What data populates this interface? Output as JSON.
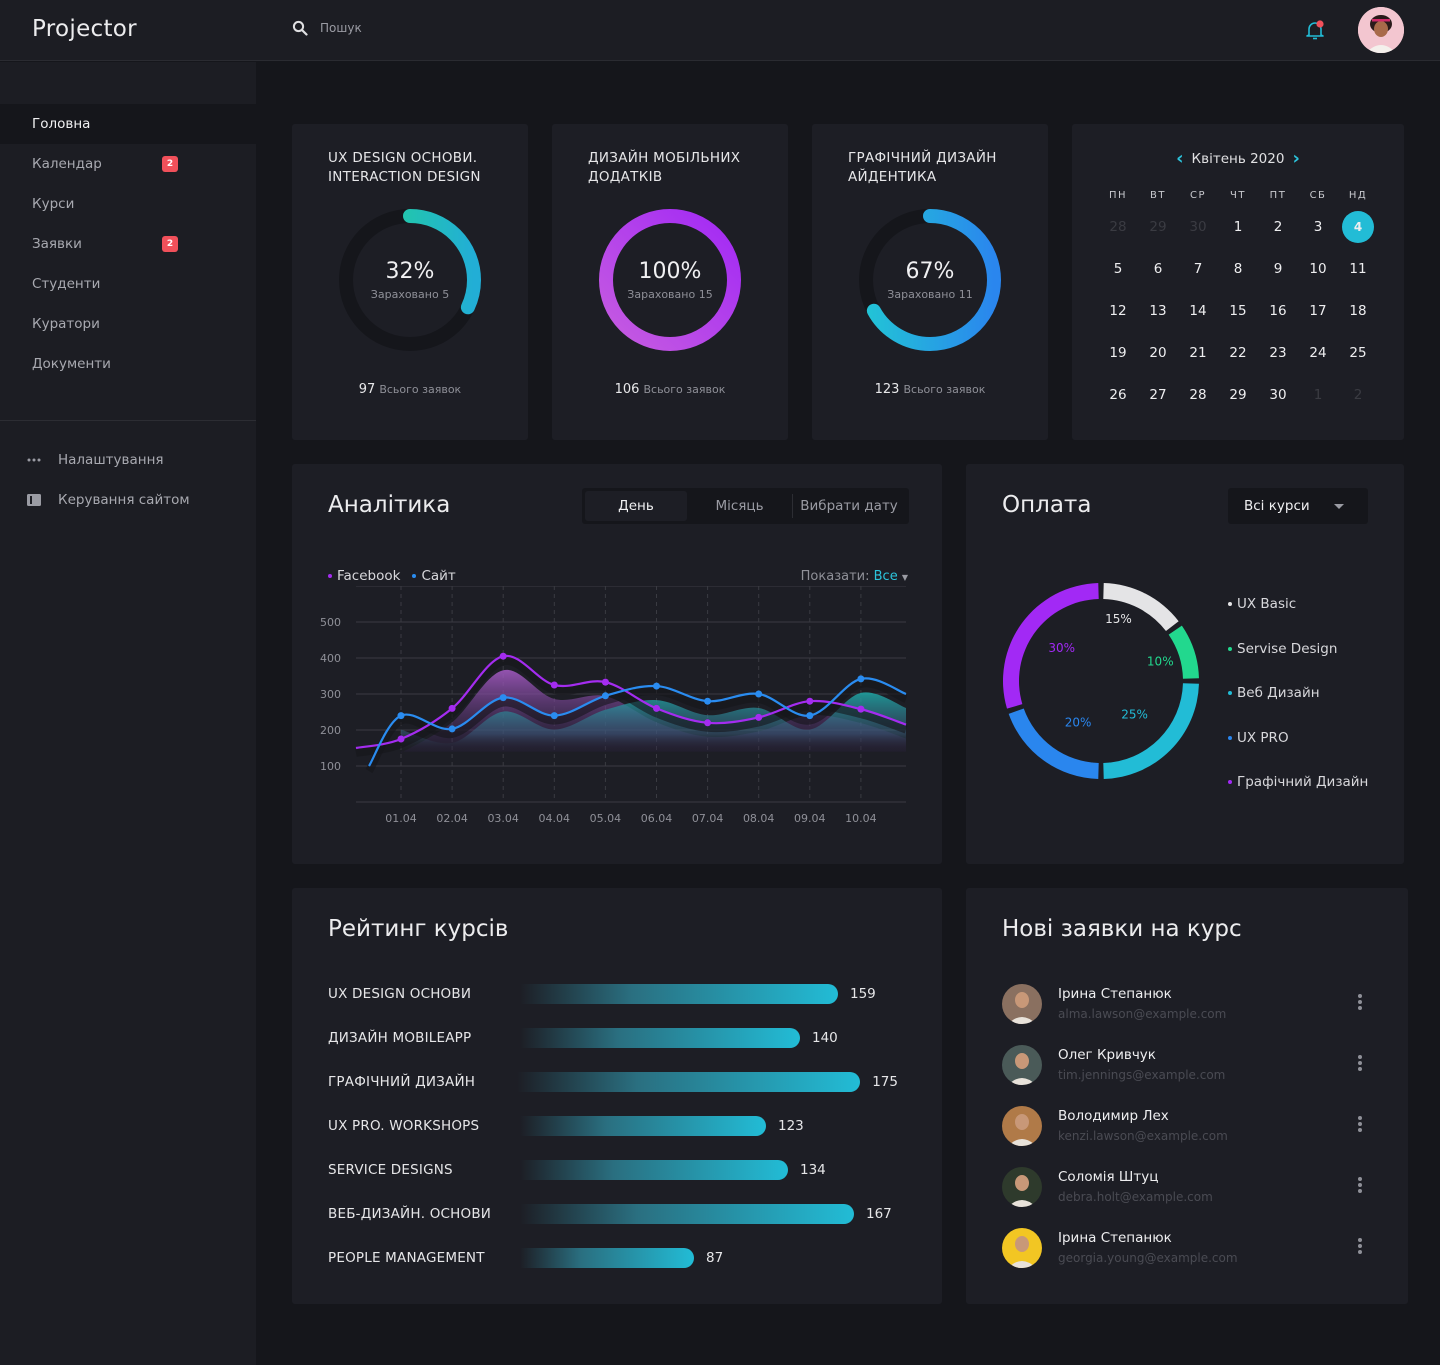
{
  "app": {
    "title": "Projector"
  },
  "header": {
    "search_placeholder": "Пошук",
    "notification_color": "#f0505a",
    "accent": "#22bcd6"
  },
  "sidebar": {
    "items": [
      {
        "label": "Головна",
        "active": true,
        "badge": null
      },
      {
        "label": "Календар",
        "badge": "2"
      },
      {
        "label": "Курси",
        "badge": null
      },
      {
        "label": "Заявки",
        "badge": "2"
      },
      {
        "label": "Студенти",
        "badge": null
      },
      {
        "label": "Куратори",
        "badge": null
      },
      {
        "label": "Документи",
        "badge": null
      }
    ],
    "bottom": [
      {
        "label": "Налаштування",
        "icon": "more-dots-icon"
      },
      {
        "label": "Керування сайтом",
        "icon": "site-panel-icon"
      }
    ]
  },
  "courses": [
    {
      "title_line1": "UX DESIGN ОСНОВИ.",
      "title_line2": "INTERACTION DESIGN",
      "percent": 32,
      "percent_label": "32%",
      "enrolled_label": "Зараховано 5",
      "total": "97",
      "total_label": "Всього заявок",
      "color_start": "#22d88e",
      "color_end": "#22aed6"
    },
    {
      "title_line1": "ДИЗАЙН МОБІЛЬНИХ",
      "title_line2": "ДОДАТКІВ",
      "percent": 100,
      "percent_label": "100%",
      "enrolled_label": "Зараховано 15",
      "total": "106",
      "total_label": "Всього заявок",
      "color_start": "#c65ce0",
      "color_end": "#a229f5"
    },
    {
      "title_line1": "ГРАФІЧНИЙ ДИЗАЙН",
      "title_line2": "АЙДЕНТИКА",
      "percent": 67,
      "percent_label": "67%",
      "enrolled_label": "Зараховано 11",
      "total": "123",
      "total_label": "Всього заявок",
      "color_start": "#22c4d6",
      "color_end": "#2a86ee"
    }
  ],
  "calendar": {
    "month_label": "Квітень 2020",
    "weekdays": [
      "ПН",
      "ВТ",
      "СР",
      "ЧТ",
      "ПТ",
      "СБ",
      "НД"
    ],
    "days": [
      {
        "d": "28",
        "dim": true
      },
      {
        "d": "29",
        "dim": true
      },
      {
        "d": "30",
        "dim": true
      },
      {
        "d": "1"
      },
      {
        "d": "2"
      },
      {
        "d": "3"
      },
      {
        "d": "4",
        "selected": true
      },
      {
        "d": "5"
      },
      {
        "d": "6"
      },
      {
        "d": "7"
      },
      {
        "d": "8"
      },
      {
        "d": "9"
      },
      {
        "d": "10"
      },
      {
        "d": "11"
      },
      {
        "d": "12"
      },
      {
        "d": "13"
      },
      {
        "d": "14"
      },
      {
        "d": "15"
      },
      {
        "d": "16"
      },
      {
        "d": "17"
      },
      {
        "d": "18"
      },
      {
        "d": "19"
      },
      {
        "d": "20"
      },
      {
        "d": "21"
      },
      {
        "d": "22"
      },
      {
        "d": "23"
      },
      {
        "d": "24"
      },
      {
        "d": "25"
      },
      {
        "d": "26"
      },
      {
        "d": "27"
      },
      {
        "d": "28"
      },
      {
        "d": "29"
      },
      {
        "d": "30"
      },
      {
        "d": "1",
        "dim": true
      },
      {
        "d": "2",
        "dim": true
      }
    ]
  },
  "analytics": {
    "title": "Аналітика",
    "tabs": [
      "День",
      "Місяць",
      "Вибрати дату"
    ],
    "active_tab": 0,
    "show_label": "Показати:",
    "show_value": "Все"
  },
  "payment": {
    "title": "Оплата",
    "filter": "Всі курси"
  },
  "rating": {
    "title": "Рейтинг курсів",
    "max": 175,
    "items": [
      {
        "label": "UX DESIGN ОСНОВИ",
        "value": 159
      },
      {
        "label": "ДИЗАЙН MOBILEAPP",
        "value": 140
      },
      {
        "label": "ГРАФІЧНИЙ ДИЗАЙН",
        "value": 175
      },
      {
        "label": "UX PRO. WORKSHOPS",
        "value": 123
      },
      {
        "label": "SERVICE DESIGNS",
        "value": 134
      },
      {
        "label": "ВЕБ-ДИЗАЙН. ОСНОВИ",
        "value": 167
      },
      {
        "label": "PEOPLE MANAGEMENT",
        "value": 87
      }
    ]
  },
  "applications": {
    "title": "Нові заявки на курс",
    "items": [
      {
        "name": "Ірина Степанюк",
        "email": "alma.lawson@example.com",
        "avatar_bg": "#8a7060"
      },
      {
        "name": "Олег Кривчук",
        "email": "tim.jennings@example.com",
        "avatar_bg": "#4a5a58"
      },
      {
        "name": "Володимир Лех",
        "email": "kenzi.lawson@example.com",
        "avatar_bg": "#b07a48"
      },
      {
        "name": "Соломія Штуц",
        "email": "debra.holt@example.com",
        "avatar_bg": "#2e3a2c"
      },
      {
        "name": "Ірина Степанюк",
        "email": "georgia.young@example.com",
        "avatar_bg": "#f2c623"
      }
    ]
  },
  "chart_data": [
    {
      "type": "line",
      "title": "Аналітика",
      "categories": [
        "01.04",
        "02.04",
        "03.04",
        "04.04",
        "05.04",
        "06.04",
        "07.04",
        "08.04",
        "09.04",
        "10.04"
      ],
      "series": [
        {
          "name": "Facebook",
          "color": "#a42cf0",
          "values": [
            175,
            260,
            405,
            325,
            333,
            260,
            220,
            235,
            280,
            258
          ]
        },
        {
          "name": "Сайт",
          "color": "#2a8cf0",
          "values": [
            240,
            203,
            290,
            240,
            295,
            322,
            280,
            300,
            240,
            342
          ]
        }
      ],
      "yticks": [
        100,
        200,
        300,
        400,
        500
      ],
      "ylim": [
        0,
        600
      ],
      "grid": true,
      "legend": "top-left"
    },
    {
      "type": "pie",
      "title": "Оплата",
      "labels": [
        "UX Basic",
        "Servise Design",
        "Веб Дизайн",
        "UX PRO",
        "Графічний Дизайн"
      ],
      "values": [
        15,
        10,
        25,
        20,
        30
      ],
      "value_labels": [
        "15%",
        "10%",
        "25%",
        "20%",
        "30%"
      ],
      "colors": [
        "#e4e4e6",
        "#22d88e",
        "#22bcd6",
        "#2a86ee",
        "#a229f5"
      ],
      "legend": "right"
    }
  ]
}
